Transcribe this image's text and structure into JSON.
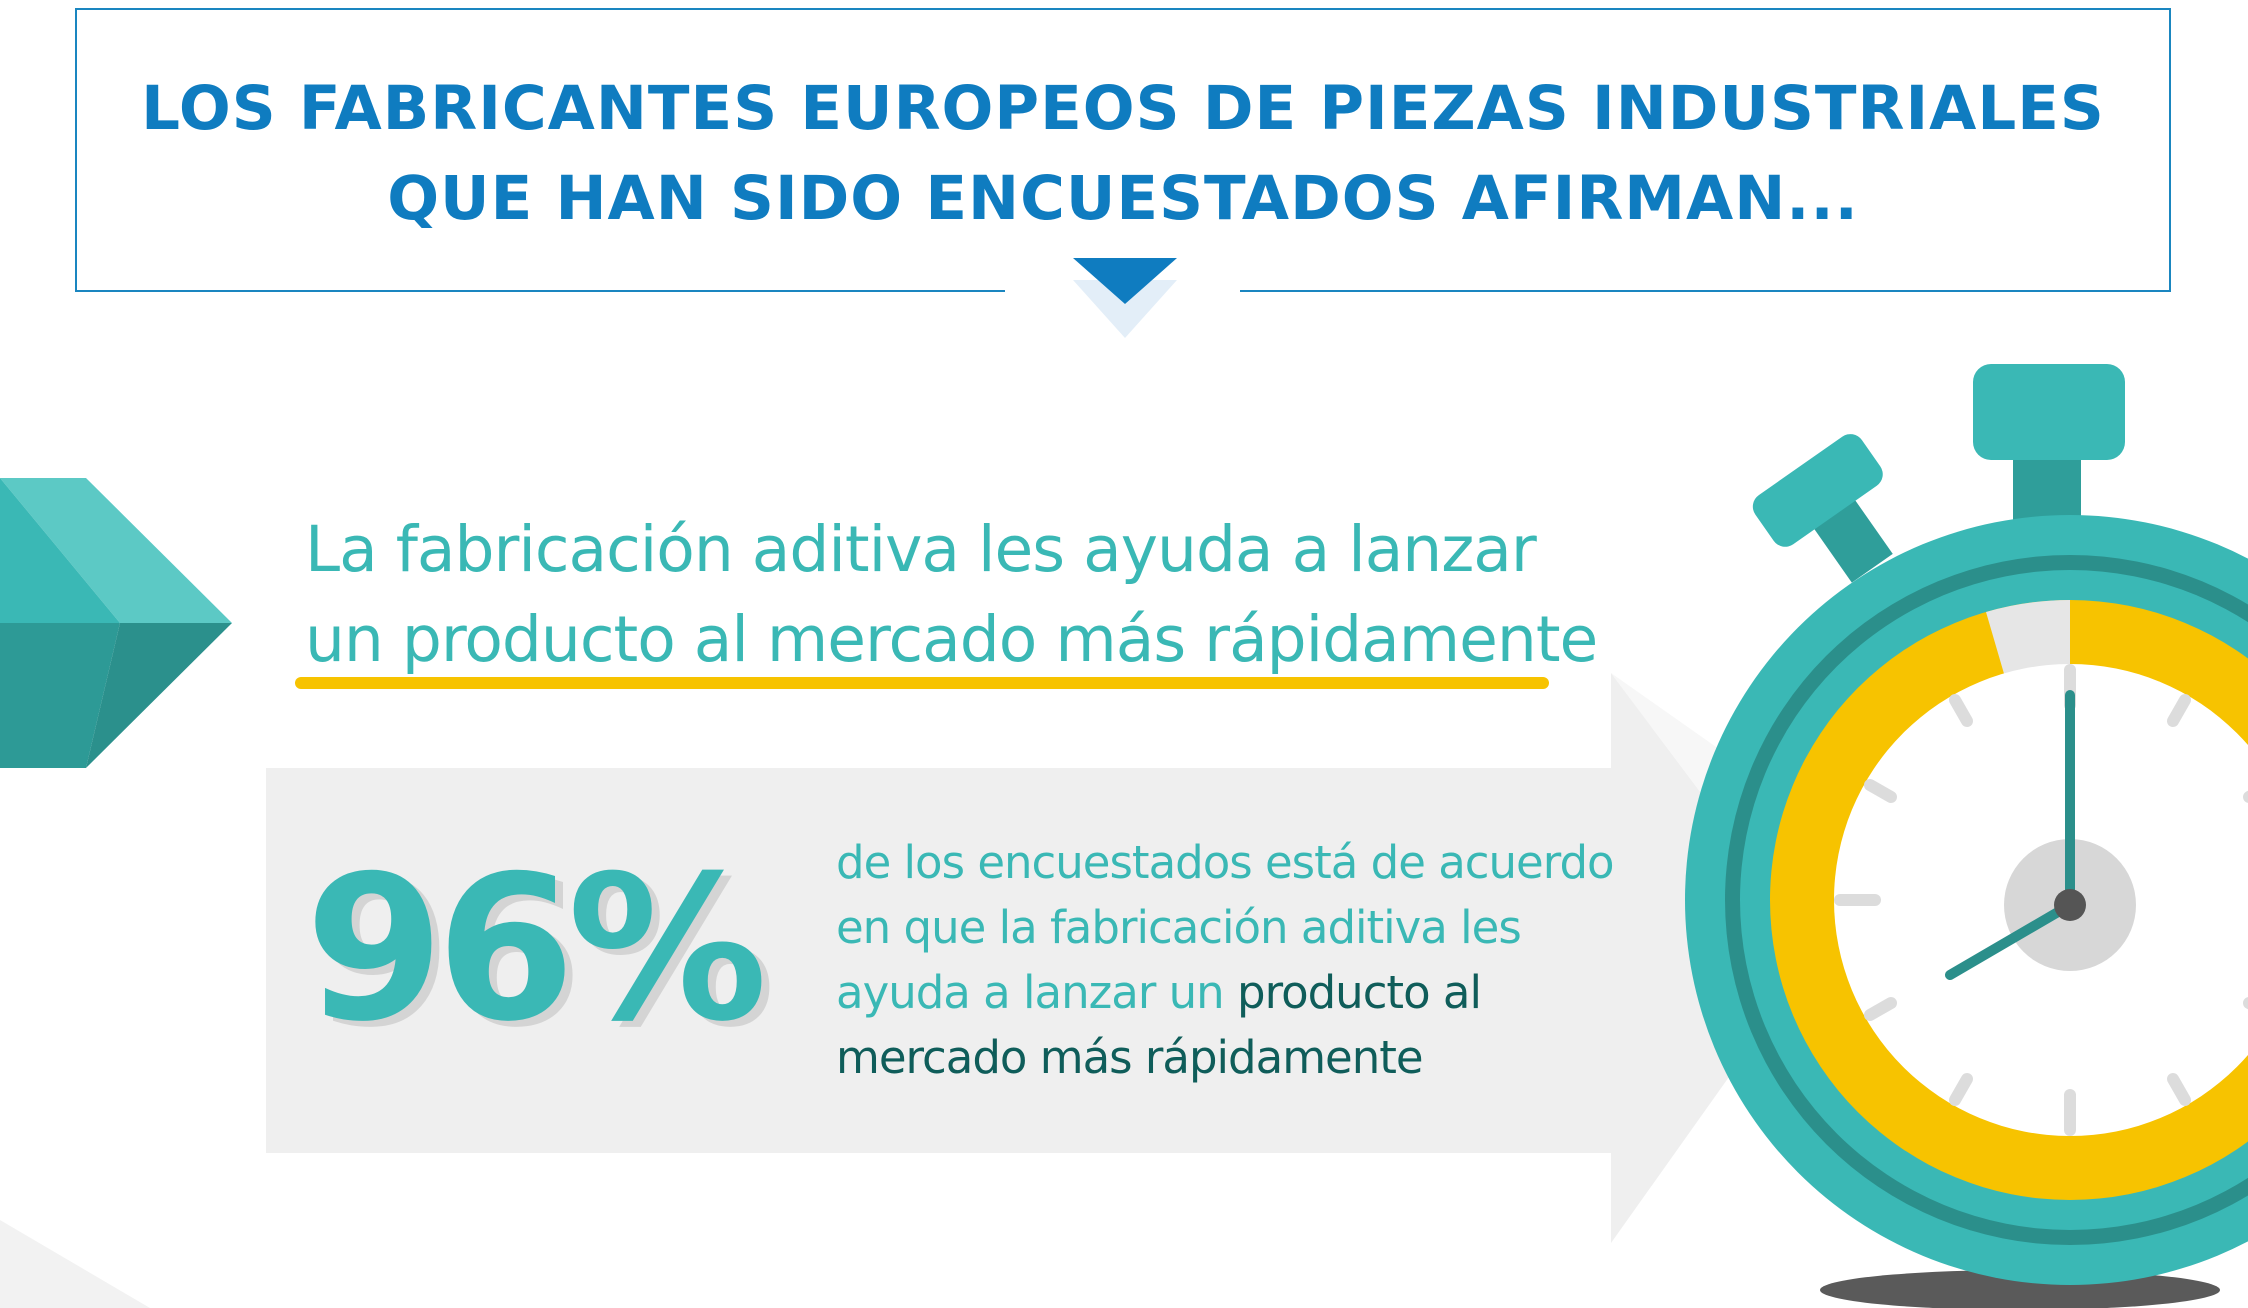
{
  "header": {
    "title_line1": "LOS FABRICANTES EUROPEOS DE PIEZAS INDUSTRIALES",
    "title_line2": "QUE HAN SIDO ENCUESTADOS AFIRMAN..."
  },
  "headline": {
    "line1": "La fabricación aditiva les ayuda a lanzar",
    "line2": "un producto al mercado más rápidamente"
  },
  "stat": {
    "value": "96%",
    "desc_line1": "de los encuestados está de acuerdo",
    "desc_line2": "en que la fabricación aditiva les",
    "desc_line3_light": "ayuda a lanzar un ",
    "desc_line3_dark": "producto al",
    "desc_line4": "mercado más rápidamente"
  },
  "stopwatch": {
    "icon": "stopwatch-icon",
    "time_shown": "8:00"
  },
  "colors": {
    "header_blue": "#0f7cc0",
    "teal": "#3ab8b5",
    "dark_teal": "#0f5d5a",
    "yellow": "#f7c300",
    "grey_panel": "#efefef"
  }
}
